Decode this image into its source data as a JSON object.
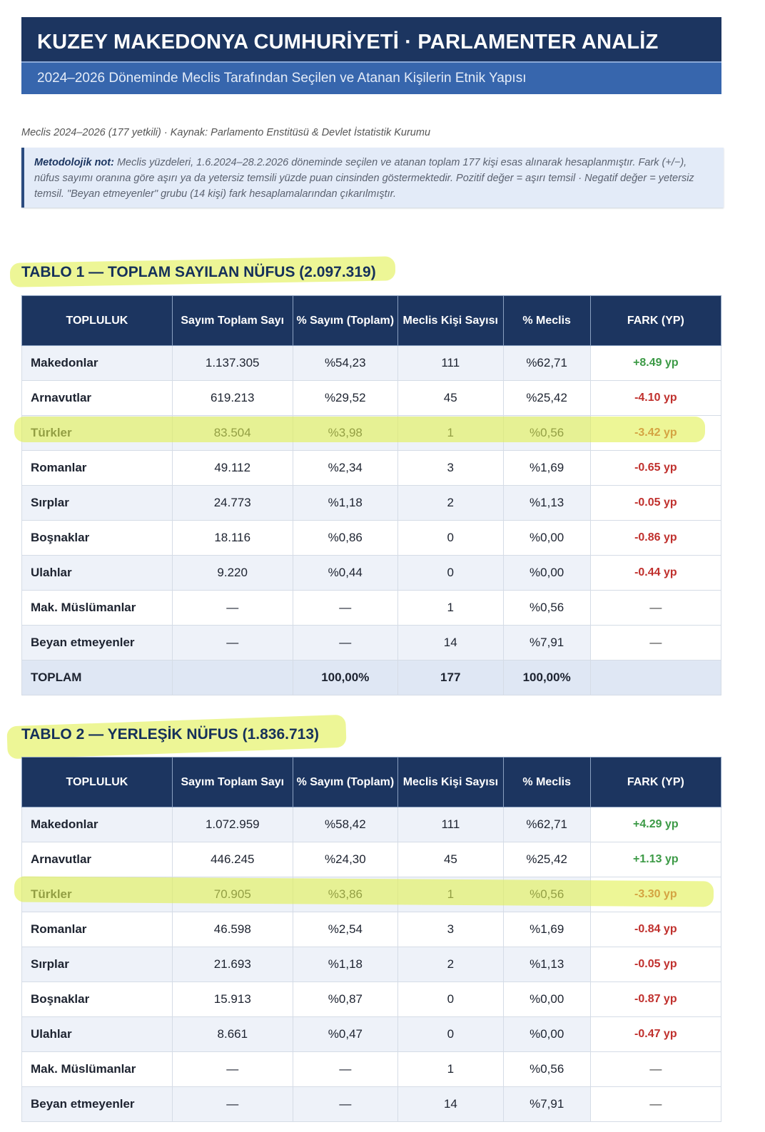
{
  "header": {
    "title": "KUZEY MAKEDONYA CUMHURİYETİ · PARLAMENTER ANALİZ",
    "subtitle": "2024–2026 Döneminde Meclis Tarafından Seçilen ve Atanan Kişilerin Etnik Yapısı"
  },
  "meta": "Meclis 2024–2026 (177 yetkili)  ·  Kaynak: Parlamento Enstitüsü & Devlet İstatistik Kurumu",
  "note": {
    "label": "Metodolojik not:",
    "text": " Meclis yüzdeleri, 1.6.2024–28.2.2026 döneminde seçilen ve atanan toplam 177 kişi esas alınarak hesaplanmıştır. Fark (+/−), nüfus sayımı oranına göre aşırı ya da yetersiz temsili yüzde puan cinsinden göstermektedir. Pozitif değer = aşırı temsil · Negatif değer = yetersiz temsil. \"Beyan etmeyenler\" grubu (14 kişi) fark hesaplamalarından çıkarılmıştır."
  },
  "columns": [
    "TOPLULUK",
    "Sayım Toplam Sayı",
    "% Sayım (Toplam)",
    "Meclis Kişi Sayısı",
    "% Meclis",
    "FARK (YP)"
  ],
  "tables": [
    {
      "title": "TABLO 1 — TOPLAM SAYILAN NÜFUS (2.097.319)",
      "rows": [
        [
          "Makedonlar",
          "1.137.305",
          "%54,23",
          "111",
          "%62,71",
          "+8.49 yp"
        ],
        [
          "Arnavutlar",
          "619.213",
          "%29,52",
          "45",
          "%25,42",
          "-4.10 yp"
        ],
        [
          "Türkler",
          "83.504",
          "%3,98",
          "1",
          "%0,56",
          "-3.42 yp"
        ],
        [
          "Romanlar",
          "49.112",
          "%2,34",
          "3",
          "%1,69",
          "-0.65 yp"
        ],
        [
          "Sırplar",
          "24.773",
          "%1,18",
          "2",
          "%1,13",
          "-0.05 yp"
        ],
        [
          "Boşnaklar",
          "18.116",
          "%0,86",
          "0",
          "%0,00",
          "-0.86 yp"
        ],
        [
          "Ulahlar",
          "9.220",
          "%0,44",
          "0",
          "%0,00",
          "-0.44 yp"
        ],
        [
          "Mak. Müslümanlar",
          "—",
          "—",
          "1",
          "%0,56",
          "—"
        ],
        [
          "Beyan etmeyenler",
          "—",
          "—",
          "14",
          "%7,91",
          "—"
        ],
        [
          "TOPLAM",
          "",
          "100,00%",
          "177",
          "100,00%",
          ""
        ]
      ]
    },
    {
      "title": "TABLO 2 — YERLEŞİK NÜFUS (1.836.713)",
      "rows": [
        [
          "Makedonlar",
          "1.072.959",
          "%58,42",
          "111",
          "%62,71",
          "+4.29 yp"
        ],
        [
          "Arnavutlar",
          "446.245",
          "%24,30",
          "45",
          "%25,42",
          "+1.13 yp"
        ],
        [
          "Türkler",
          "70.905",
          "%3,86",
          "1",
          "%0,56",
          "-3.30 yp"
        ],
        [
          "Romanlar",
          "46.598",
          "%2,54",
          "3",
          "%1,69",
          "-0.84 yp"
        ],
        [
          "Sırplar",
          "21.693",
          "%1,18",
          "2",
          "%1,13",
          "-0.05 yp"
        ],
        [
          "Boşnaklar",
          "15.913",
          "%0,87",
          "0",
          "%0,00",
          "-0.87 yp"
        ],
        [
          "Ulahlar",
          "8.661",
          "%0,47",
          "0",
          "%0,00",
          "-0.47 yp"
        ],
        [
          "Mak. Müslümanlar",
          "—",
          "—",
          "1",
          "%0,56",
          "—"
        ],
        [
          "Beyan etmeyenler",
          "—",
          "—",
          "14",
          "%7,91",
          "—"
        ]
      ]
    }
  ]
}
